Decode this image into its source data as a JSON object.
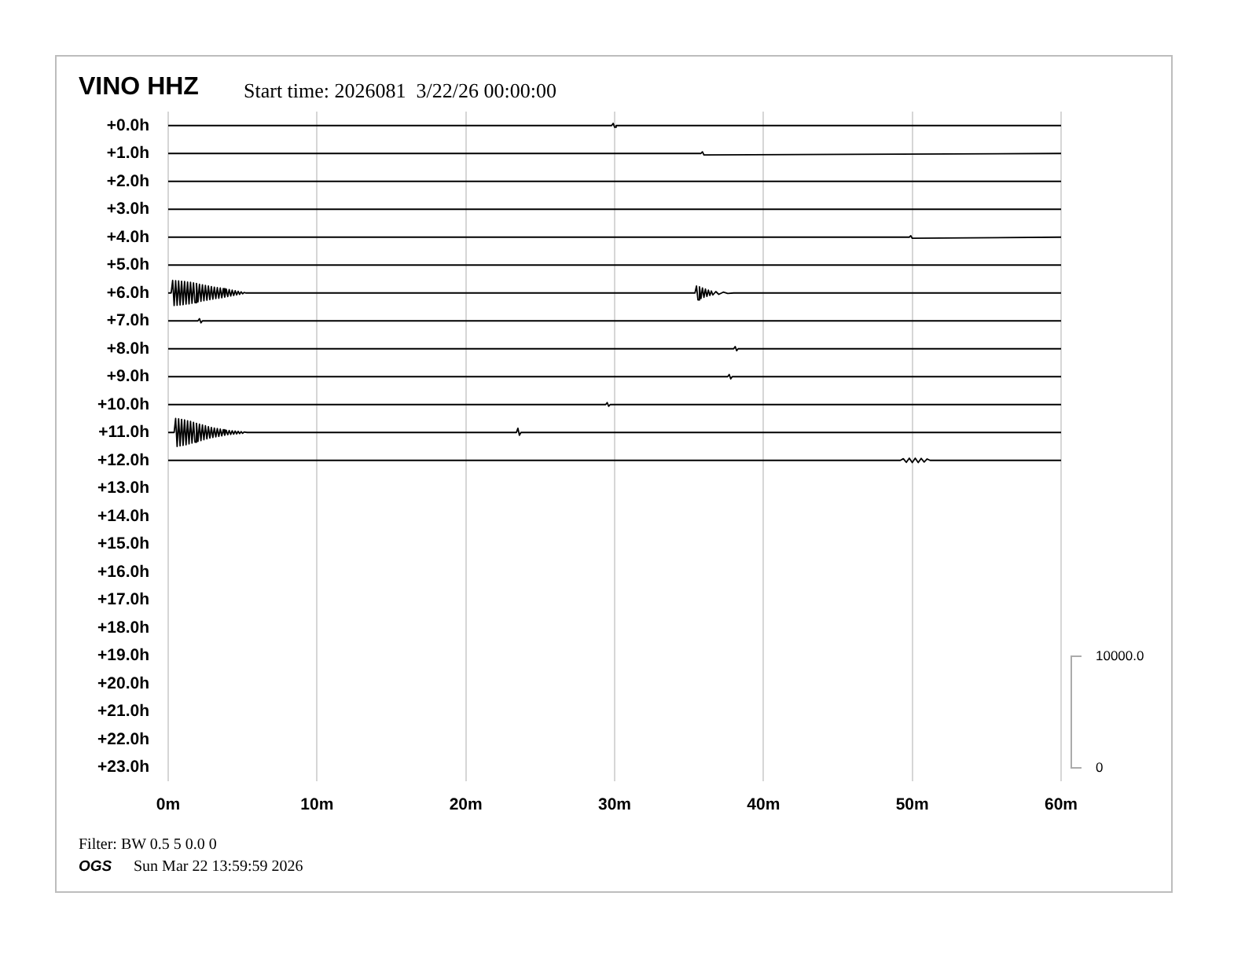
{
  "chart_data": {
    "type": "line",
    "title": "VINO HHZ",
    "subtitle": "Start time: 2026081  3/22/26 00:00:00",
    "xlim": [
      0,
      60
    ],
    "xticks": [
      {
        "value": 0,
        "label": "0m"
      },
      {
        "value": 10,
        "label": "10m"
      },
      {
        "value": 20,
        "label": "20m"
      },
      {
        "value": 30,
        "label": "30m"
      },
      {
        "value": 40,
        "label": "40m"
      },
      {
        "value": 50,
        "label": "50m"
      },
      {
        "value": 60,
        "label": "60m"
      }
    ],
    "ylim": [
      23.5,
      -0.5
    ],
    "yticks": [
      {
        "value": 0,
        "label": "+0.0h"
      },
      {
        "value": 1,
        "label": "+1.0h"
      },
      {
        "value": 2,
        "label": "+2.0h"
      },
      {
        "value": 3,
        "label": "+3.0h"
      },
      {
        "value": 4,
        "label": "+4.0h"
      },
      {
        "value": 5,
        "label": "+5.0h"
      },
      {
        "value": 6,
        "label": "+6.0h"
      },
      {
        "value": 7,
        "label": "+7.0h"
      },
      {
        "value": 8,
        "label": "+8.0h"
      },
      {
        "value": 9,
        "label": "+9.0h"
      },
      {
        "value": 10,
        "label": "+10.0h"
      },
      {
        "value": 11,
        "label": "+11.0h"
      },
      {
        "value": 12,
        "label": "+12.0h"
      },
      {
        "value": 13,
        "label": "+13.0h"
      },
      {
        "value": 14,
        "label": "+14.0h"
      },
      {
        "value": 15,
        "label": "+15.0h"
      },
      {
        "value": 16,
        "label": "+16.0h"
      },
      {
        "value": 17,
        "label": "+17.0h"
      },
      {
        "value": 18,
        "label": "+18.0h"
      },
      {
        "value": 19,
        "label": "+19.0h"
      },
      {
        "value": 20,
        "label": "+20.0h"
      },
      {
        "value": 21,
        "label": "+21.0h"
      },
      {
        "value": 22,
        "label": "+22.0h"
      },
      {
        "value": 23,
        "label": "+23.0h"
      }
    ],
    "grid": "x",
    "legend": false,
    "marker": "none",
    "line_style": "solid",
    "annotations": [
      "10000.0",
      "0",
      "Filter: BW 0.5 5 0.0 0",
      "OGS",
      "Sun Mar 22 13:59:59 2026"
    ],
    "series": [
      {
        "color": "#000000",
        "x": [
          0,
          29.8,
          29.9,
          30.0,
          30.1,
          60
        ],
        "values": [
          0,
          0,
          -0.08,
          0.06,
          0,
          0
        ]
      },
      {
        "color": "#000000",
        "x": [
          0,
          35.8,
          35.9,
          36.0,
          60
        ],
        "values": [
          1,
          1,
          0.94,
          1.05,
          1
        ]
      },
      {
        "color": "#000000",
        "x": [
          0,
          60
        ],
        "values": [
          2,
          2
        ]
      },
      {
        "color": "#000000",
        "x": [
          0,
          60
        ],
        "values": [
          3,
          3
        ]
      },
      {
        "color": "#000000",
        "x": [
          0,
          49.8,
          49.9,
          50.0,
          60
        ],
        "values": [
          4,
          4,
          3.95,
          4.04,
          4
        ]
      },
      {
        "color": "#000000",
        "x": [
          0,
          60
        ],
        "values": [
          5,
          5
        ]
      },
      {
        "color": "#000000",
        "x": [
          0,
          0.2,
          0.3,
          0.4,
          0.5,
          0.6,
          0.7,
          0.8,
          0.9,
          1.0,
          1.1,
          1.2,
          1.3,
          1.4,
          1.5,
          1.6,
          1.7,
          1.8,
          1.9,
          2.0,
          2.1,
          2.2,
          2.3,
          2.4,
          2.5,
          2.6,
          2.7,
          2.8,
          2.9,
          3.0,
          3.1,
          3.2,
          3.3,
          3.4,
          3.5,
          3.6,
          3.7,
          3.8,
          3.9,
          4.0,
          4.1,
          4.2,
          4.3,
          4.4,
          4.5,
          4.6,
          4.7,
          4.8,
          4.9,
          5.0,
          5.1,
          5.2,
          35.4,
          35.5,
          35.6,
          35.7,
          35.8,
          35.9,
          36.0,
          36.1,
          36.2,
          36.3,
          36.4,
          36.5,
          36.6,
          36.8,
          37.0,
          37.3,
          37.6,
          38.0,
          60
        ],
        "values": [
          6,
          6,
          5.55,
          6.45,
          5.56,
          6.44,
          5.57,
          6.43,
          5.58,
          6.42,
          5.59,
          6.4,
          5.61,
          6.39,
          5.62,
          6.37,
          5.64,
          6.35,
          5.66,
          6.32,
          5.69,
          6.3,
          5.71,
          6.28,
          5.73,
          6.26,
          5.75,
          6.24,
          5.77,
          6.22,
          5.79,
          6.2,
          5.81,
          6.19,
          5.82,
          6.17,
          5.84,
          6.15,
          5.86,
          6.13,
          5.88,
          6.11,
          5.9,
          6.09,
          5.92,
          6.07,
          5.94,
          6.05,
          5.96,
          6.03,
          5.98,
          6,
          6,
          5.75,
          6.25,
          5.78,
          6.2,
          5.82,
          6.16,
          5.86,
          6.12,
          5.9,
          6.09,
          5.93,
          6.07,
          5.95,
          6.05,
          5.97,
          6.02,
          6,
          6
        ]
      },
      {
        "color": "#000000",
        "x": [
          0,
          2.0,
          2.1,
          2.2,
          2.3,
          60
        ],
        "values": [
          7,
          7,
          6.92,
          7.07,
          7,
          7
        ]
      },
      {
        "color": "#000000",
        "x": [
          0,
          38.0,
          38.1,
          38.2,
          38.3,
          60
        ],
        "values": [
          8,
          8,
          7.92,
          8.07,
          8,
          8
        ]
      },
      {
        "color": "#000000",
        "x": [
          0,
          37.6,
          37.7,
          37.8,
          37.9,
          60
        ],
        "values": [
          9,
          9,
          8.92,
          9.08,
          9,
          9
        ]
      },
      {
        "color": "#000000",
        "x": [
          0,
          29.4,
          29.5,
          29.6,
          29.7,
          60
        ],
        "values": [
          10,
          10,
          9.93,
          10.06,
          10,
          10
        ]
      },
      {
        "color": "#000000",
        "x": [
          0,
          0.4,
          0.5,
          0.6,
          0.7,
          0.8,
          0.9,
          1.0,
          1.1,
          1.2,
          1.3,
          1.4,
          1.5,
          1.6,
          1.7,
          1.8,
          1.9,
          2.0,
          2.1,
          2.2,
          2.3,
          2.4,
          2.5,
          2.6,
          2.7,
          2.8,
          2.9,
          3.0,
          3.1,
          3.2,
          3.3,
          3.4,
          3.5,
          3.6,
          3.7,
          3.8,
          3.9,
          4.0,
          4.1,
          4.2,
          4.3,
          4.4,
          4.5,
          4.6,
          4.7,
          4.8,
          4.9,
          5.0,
          5.1,
          5.3,
          23.4,
          23.5,
          23.6,
          23.7,
          60
        ],
        "values": [
          11,
          11,
          10.5,
          11.5,
          10.51,
          11.48,
          10.53,
          11.46,
          10.55,
          11.44,
          10.58,
          11.41,
          10.6,
          11.38,
          10.64,
          11.35,
          10.67,
          11.32,
          10.7,
          11.29,
          10.73,
          11.26,
          10.76,
          11.23,
          10.79,
          11.2,
          10.82,
          11.18,
          10.84,
          11.16,
          10.86,
          11.14,
          10.88,
          11.12,
          10.9,
          11.1,
          10.92,
          11.08,
          10.93,
          11.07,
          10.94,
          11.06,
          10.95,
          11.05,
          10.96,
          11.04,
          10.97,
          11.03,
          10.98,
          11,
          11,
          10.85,
          11.1,
          11,
          11
        ]
      },
      {
        "color": "#000000",
        "x": [
          0,
          49.2,
          49.4,
          49.6,
          49.8,
          50.0,
          50.2,
          50.4,
          50.6,
          50.8,
          51.0,
          51.2,
          60
        ],
        "values": [
          12,
          12,
          11.94,
          12.07,
          11.92,
          12.08,
          11.92,
          12.08,
          11.93,
          12.06,
          11.95,
          12,
          12
        ]
      }
    ]
  }
}
